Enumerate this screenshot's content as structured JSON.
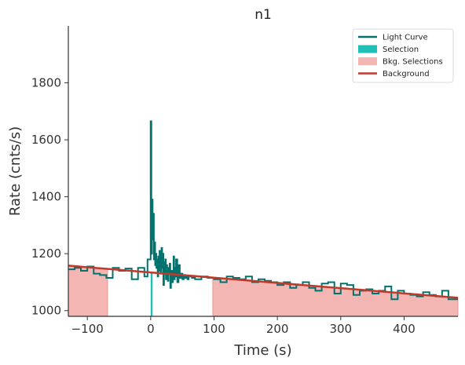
{
  "chart_data": {
    "type": "line",
    "title": "n1",
    "xlabel": "Time (s)",
    "ylabel": "Rate (cnts/s)",
    "xlim": [
      -130,
      485
    ],
    "ylim": [
      980,
      2000
    ],
    "xticks": [
      -100,
      0,
      100,
      200,
      300,
      400
    ],
    "xtick_labels": [
      "−100",
      "0",
      "100",
      "200",
      "300",
      "400"
    ],
    "yticks": [
      1000,
      1200,
      1400,
      1600,
      1800
    ],
    "ytick_labels": [
      "1000",
      "1200",
      "1400",
      "1600",
      "1800"
    ],
    "grid": false,
    "legend_position": "top-right",
    "legend": [
      {
        "label": "Light Curve",
        "kind": "line",
        "color": "#00736f"
      },
      {
        "label": "Selection",
        "kind": "patch",
        "color": "#1fbfb5"
      },
      {
        "label": "Bkg. Selections",
        "kind": "patch",
        "color": "#f4b6b2"
      },
      {
        "label": "Background",
        "kind": "line",
        "color": "#c0392b"
      }
    ],
    "colors": {
      "light_curve": "#00736f",
      "selection": "#1fbfb5",
      "bkg_selection_fill": "#f4b6b2",
      "bkg_selection_edge": "#e08a85",
      "background": "#c0392b",
      "axis": "#333333"
    },
    "series": [
      {
        "name": "Light Curve",
        "style": "step",
        "x": [
          -130,
          -120,
          -110,
          -100,
          -90,
          -80,
          -70,
          -60,
          -50,
          -40,
          -30,
          -20,
          -10,
          -5,
          0,
          1,
          2,
          3,
          4,
          5,
          6,
          7,
          8,
          9,
          10,
          11,
          12,
          13,
          14,
          15,
          16,
          17,
          18,
          19,
          20,
          21,
          22,
          23,
          24,
          25,
          26,
          27,
          28,
          29,
          30,
          31,
          32,
          33,
          34,
          35,
          36,
          37,
          38,
          39,
          40,
          42,
          44,
          46,
          48,
          50,
          52,
          54,
          56,
          58,
          60,
          65,
          70,
          80,
          90,
          100,
          110,
          120,
          130,
          140,
          150,
          160,
          170,
          180,
          190,
          200,
          210,
          220,
          230,
          240,
          250,
          260,
          270,
          280,
          290,
          300,
          310,
          320,
          330,
          340,
          350,
          360,
          370,
          380,
          390,
          400,
          410,
          420,
          430,
          440,
          450,
          460,
          470,
          485
        ],
        "y": [
          1145,
          1150,
          1140,
          1155,
          1130,
          1125,
          1115,
          1150,
          1140,
          1148,
          1110,
          1150,
          1120,
          1180,
          1665,
          1200,
          1390,
          1250,
          1340,
          1180,
          1240,
          1160,
          1200,
          1150,
          1180,
          1120,
          1190,
          1140,
          1210,
          1160,
          1130,
          1220,
          1150,
          1200,
          1090,
          1170,
          1130,
          1180,
          1110,
          1160,
          1140,
          1105,
          1150,
          1130,
          1165,
          1080,
          1120,
          1140,
          1100,
          1135,
          1190,
          1110,
          1150,
          1120,
          1180,
          1100,
          1160,
          1115,
          1130,
          1110,
          1125,
          1115,
          1120,
          1110,
          1120,
          1115,
          1110,
          1120,
          1115,
          1110,
          1100,
          1120,
          1115,
          1110,
          1120,
          1100,
          1110,
          1105,
          1100,
          1090,
          1100,
          1080,
          1090,
          1100,
          1080,
          1070,
          1095,
          1100,
          1060,
          1095,
          1090,
          1055,
          1070,
          1075,
          1060,
          1070,
          1085,
          1040,
          1070,
          1060,
          1055,
          1050,
          1065,
          1055,
          1050,
          1070,
          1040,
          1040
        ]
      },
      {
        "name": "Background",
        "style": "line",
        "x": [
          -130,
          485
        ],
        "y": [
          1158,
          1045
        ]
      }
    ],
    "selection": {
      "x": [
        0,
        3
      ],
      "label": "Selection"
    },
    "bkg_selections": [
      [
        -130,
        -68
      ],
      [
        98,
        485
      ]
    ]
  }
}
